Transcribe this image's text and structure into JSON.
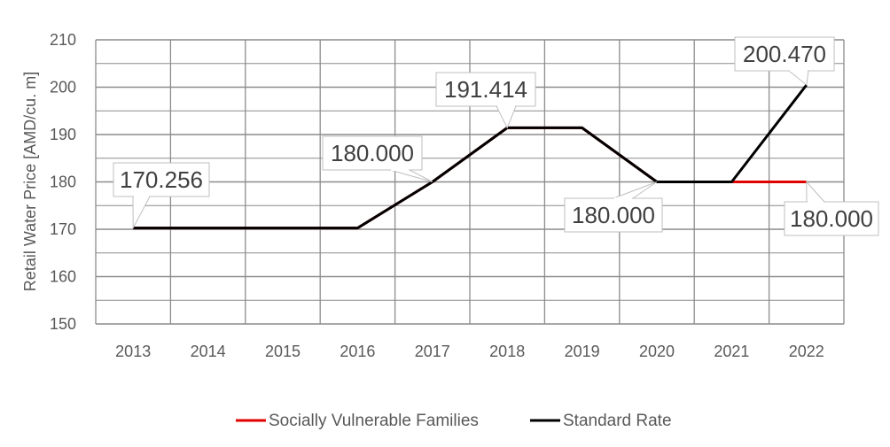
{
  "chart_data": {
    "type": "line",
    "title": "",
    "xlabel": "",
    "ylabel": "Retail Water Price [AMD/cu. m]",
    "ylim": [
      150,
      210
    ],
    "y_ticks": [
      150,
      160,
      170,
      180,
      190,
      200,
      210
    ],
    "categories": [
      "2013",
      "2014",
      "2015",
      "2016",
      "2017",
      "2018",
      "2019",
      "2020",
      "2021",
      "2022"
    ],
    "grid": true,
    "legend_position": "bottom",
    "series": [
      {
        "name": "Socially Vulnerable Families",
        "color": "#e00000",
        "values": [
          170.256,
          170.256,
          170.256,
          170.256,
          180.0,
          191.414,
          191.414,
          180.0,
          180.0,
          180.0
        ]
      },
      {
        "name": "Standard Rate",
        "color": "#000000",
        "values": [
          170.256,
          170.256,
          170.256,
          170.256,
          180.0,
          191.414,
          191.414,
          180.0,
          180.0,
          200.47
        ]
      }
    ],
    "annotations": [
      {
        "text": "170.256",
        "category": "2013",
        "value": 170.256
      },
      {
        "text": "180.000",
        "category": "2017",
        "value": 180.0
      },
      {
        "text": "191.414",
        "category": "2018",
        "value": 191.414
      },
      {
        "text": "180.000",
        "category": "2020",
        "value": 180.0
      },
      {
        "text": "200.470",
        "category": "2022",
        "value": 200.47
      },
      {
        "text": "180.000",
        "category": "2022",
        "value": 180.0
      }
    ]
  }
}
